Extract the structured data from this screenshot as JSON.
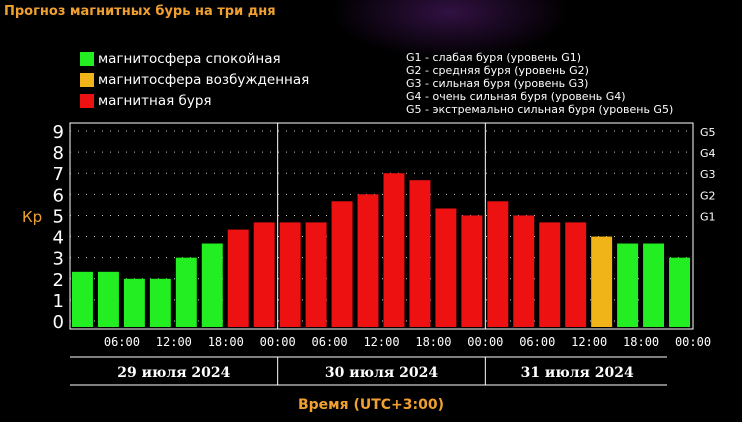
{
  "title": "Прогноз магнитных бурь на три дня",
  "legend": [
    {
      "label": "магнитосфера спокойная",
      "color": "#22ee22"
    },
    {
      "label": "магнитосфера возбужденная",
      "color": "#f0b418"
    },
    {
      "label": "магнитная буря",
      "color": "#ee1111"
    }
  ],
  "storm_levels": [
    "G1 - слабая буря (уровень G1)",
    "G2 - средняя буря (уровень G2)",
    "G3 - сильная буря (уровень G3)",
    "G4 - очень сильная буря (уровень G4)",
    "G5 - экстремально сильная буря (уровень G5)"
  ],
  "chart_data": {
    "type": "bar",
    "ylabel": "Кр",
    "xlabel": "Время (UTC+3:00)",
    "ylim": [
      0,
      9
    ],
    "y_ticks": [
      "0",
      "1",
      "2",
      "3",
      "4",
      "5",
      "6",
      "7",
      "8",
      "9"
    ],
    "right_ticks": [
      "G1",
      "G2",
      "G3",
      "G4",
      "G5"
    ],
    "grid": true,
    "time_labels": [
      "06:00",
      "12:00",
      "18:00",
      "00:00",
      "06:00",
      "12:00",
      "18:00",
      "00:00",
      "06:00",
      "12:00",
      "18:00",
      "00:00"
    ],
    "days": [
      "29 июля 2024",
      "30 июля 2024",
      "31 июля 2024"
    ],
    "values": [
      2.33,
      2.33,
      2.0,
      2.0,
      3.0,
      3.67,
      4.33,
      4.67,
      4.67,
      4.67,
      5.67,
      6.0,
      7.0,
      6.67,
      5.33,
      5.0,
      5.67,
      5.0,
      4.67,
      4.67,
      4.0,
      3.67,
      3.67,
      3.0
    ],
    "status": [
      "quiet",
      "quiet",
      "quiet",
      "quiet",
      "quiet",
      "quiet",
      "storm",
      "storm",
      "storm",
      "storm",
      "storm",
      "storm",
      "storm",
      "storm",
      "storm",
      "storm",
      "storm",
      "storm",
      "storm",
      "storm",
      "active",
      "quiet",
      "quiet",
      "quiet"
    ],
    "status_colors": {
      "quiet": "#22ee22",
      "active": "#f0b418",
      "storm": "#ee1111"
    }
  }
}
